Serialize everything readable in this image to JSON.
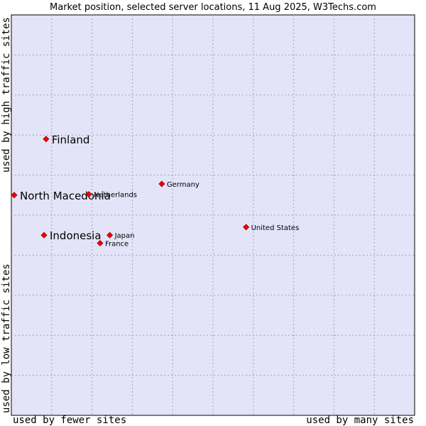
{
  "chart_data": {
    "type": "scatter",
    "title": "Market position, selected server locations, 11 Aug 2025, W3Techs.com",
    "x_labels": {
      "low": "used by fewer sites",
      "high": "used by many sites"
    },
    "y_labels": {
      "low": "used by low traffic sites",
      "high": "used by high traffic sites"
    },
    "xlim": [
      0,
      100
    ],
    "ylim": [
      0,
      100
    ],
    "grid": true,
    "points": [
      {
        "name": "Finland",
        "x": 8.6,
        "y": 69.0,
        "highlight": true
      },
      {
        "name": "North Macedonia",
        "x": 0.7,
        "y": 55.0,
        "highlight": true
      },
      {
        "name": "Netherlands",
        "x": 19.2,
        "y": 55.2,
        "highlight": false
      },
      {
        "name": "Germany",
        "x": 37.3,
        "y": 57.8,
        "highlight": false
      },
      {
        "name": "Indonesia",
        "x": 8.1,
        "y": 45.0,
        "highlight": true
      },
      {
        "name": "Japan",
        "x": 24.4,
        "y": 45.0,
        "highlight": false
      },
      {
        "name": "France",
        "x": 22.0,
        "y": 43.0,
        "highlight": false
      },
      {
        "name": "United States",
        "x": 58.2,
        "y": 47.0,
        "highlight": false
      }
    ],
    "colors": {
      "plot_bg": "#e4e4f8",
      "point": "#ee0000",
      "point_edge": "#aa0000",
      "grid": "#a0a0c0"
    }
  }
}
